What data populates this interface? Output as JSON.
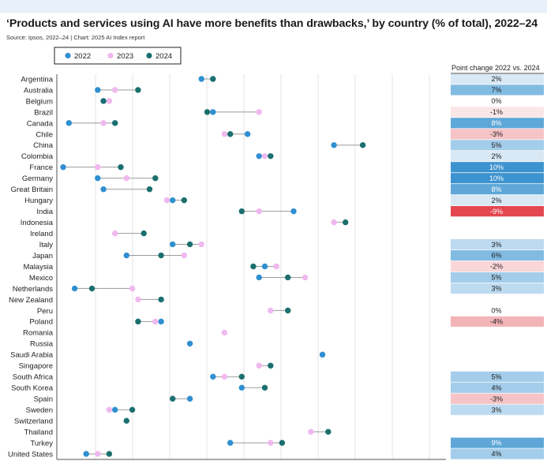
{
  "title": "‘Products and services using AI have more benefits than drawbacks,’ by country (% of total), 2022–24",
  "source": "Source: Ipsos, 2022–24 | Chart: 2025 AI Index report",
  "chart_data": {
    "type": "scatter",
    "subtype": "dumbbell",
    "title": "‘Products and services using AI have more benefits than drawbacks,’ by country (% of total), 2022–24",
    "xlim": [
      30,
      90
    ],
    "grid": true,
    "legend_position": "top-left",
    "change_header": "Point change 2022 vs. 2024",
    "series_colors": {
      "2022": "#2f8fd0",
      "2023": "#f0b8ee",
      "2024": "#1b6f6f"
    },
    "legend": [
      "2022",
      "2023",
      "2024"
    ],
    "rows": [
      {
        "country": "Argentina",
        "v2022": 55,
        "v2023": null,
        "v2024": 57,
        "change": "2%"
      },
      {
        "country": "Australia",
        "v2022": 37,
        "v2023": 40,
        "v2024": 44,
        "change": "7%"
      },
      {
        "country": "Belgium",
        "v2022": 38,
        "v2023": 39,
        "v2024": 38,
        "change": "0%"
      },
      {
        "country": "Brazil",
        "v2022": 57,
        "v2023": 65,
        "v2024": 56,
        "change": "-1%"
      },
      {
        "country": "Canada",
        "v2022": 32,
        "v2023": 38,
        "v2024": 40,
        "change": "8%"
      },
      {
        "country": "Chile",
        "v2022": 63,
        "v2023": 59,
        "v2024": 60,
        "change": "-3%"
      },
      {
        "country": "China",
        "v2022": 78,
        "v2023": null,
        "v2024": 83,
        "change": "5%"
      },
      {
        "country": "Colombia",
        "v2022": 65,
        "v2023": 66,
        "v2024": 67,
        "change": "2%"
      },
      {
        "country": "France",
        "v2022": 31,
        "v2023": 37,
        "v2024": 41,
        "change": "10%"
      },
      {
        "country": "Germany",
        "v2022": 37,
        "v2023": 42,
        "v2024": 47,
        "change": "10%"
      },
      {
        "country": "Great Britain",
        "v2022": 38,
        "v2023": null,
        "v2024": 46,
        "change": "8%"
      },
      {
        "country": "Hungary",
        "v2022": 50,
        "v2023": 49,
        "v2024": 52,
        "change": "2%"
      },
      {
        "country": "India",
        "v2022": 71,
        "v2023": 65,
        "v2024": 62,
        "change": "-9%"
      },
      {
        "country": "Indonesia",
        "v2022": null,
        "v2023": 78,
        "v2024": 80,
        "change": ""
      },
      {
        "country": "Ireland",
        "v2022": null,
        "v2023": 40,
        "v2024": 45,
        "change": ""
      },
      {
        "country": "Italy",
        "v2022": 50,
        "v2023": 55,
        "v2024": 53,
        "change": "3%"
      },
      {
        "country": "Japan",
        "v2022": 42,
        "v2023": 52,
        "v2024": 48,
        "change": "6%"
      },
      {
        "country": "Malaysia",
        "v2022": 66,
        "v2023": 68,
        "v2024": 64,
        "change": "-2%"
      },
      {
        "country": "Mexico",
        "v2022": 65,
        "v2023": 73,
        "v2024": 70,
        "change": "5%"
      },
      {
        "country": "Netherlands",
        "v2022": 33,
        "v2023": 43,
        "v2024": 36,
        "change": "3%"
      },
      {
        "country": "New Zealand",
        "v2022": null,
        "v2023": 44,
        "v2024": 48,
        "change": ""
      },
      {
        "country": "Peru",
        "v2022": null,
        "v2023": 67,
        "v2024": 70,
        "change": "0%"
      },
      {
        "country": "Poland",
        "v2022": 48,
        "v2023": 47,
        "v2024": 44,
        "change": "-4%"
      },
      {
        "country": "Romania",
        "v2022": null,
        "v2023": 59,
        "v2024": null,
        "change": ""
      },
      {
        "country": "Russia",
        "v2022": 53,
        "v2023": null,
        "v2024": null,
        "change": ""
      },
      {
        "country": "Saudi Arabia",
        "v2022": 76,
        "v2023": null,
        "v2024": null,
        "change": ""
      },
      {
        "country": "Singapore",
        "v2022": null,
        "v2023": 65,
        "v2024": 67,
        "change": ""
      },
      {
        "country": "South Africa",
        "v2022": 57,
        "v2023": 59,
        "v2024": 62,
        "change": "5%"
      },
      {
        "country": "South Korea",
        "v2022": 62,
        "v2023": null,
        "v2024": 66,
        "change": "4%"
      },
      {
        "country": "Spain",
        "v2022": 53,
        "v2023": null,
        "v2024": 50,
        "change": "-3%"
      },
      {
        "country": "Sweden",
        "v2022": 40,
        "v2023": 39,
        "v2024": 43,
        "change": "3%"
      },
      {
        "country": "Switzerland",
        "v2022": null,
        "v2023": null,
        "v2024": 42,
        "change": ""
      },
      {
        "country": "Thailand",
        "v2022": null,
        "v2023": 74,
        "v2024": 77,
        "change": ""
      },
      {
        "country": "Turkey",
        "v2022": 60,
        "v2023": 67,
        "v2024": 69,
        "change": "9%"
      },
      {
        "country": "United States",
        "v2022": 35,
        "v2023": 37,
        "v2024": 39,
        "change": "4%"
      }
    ]
  }
}
